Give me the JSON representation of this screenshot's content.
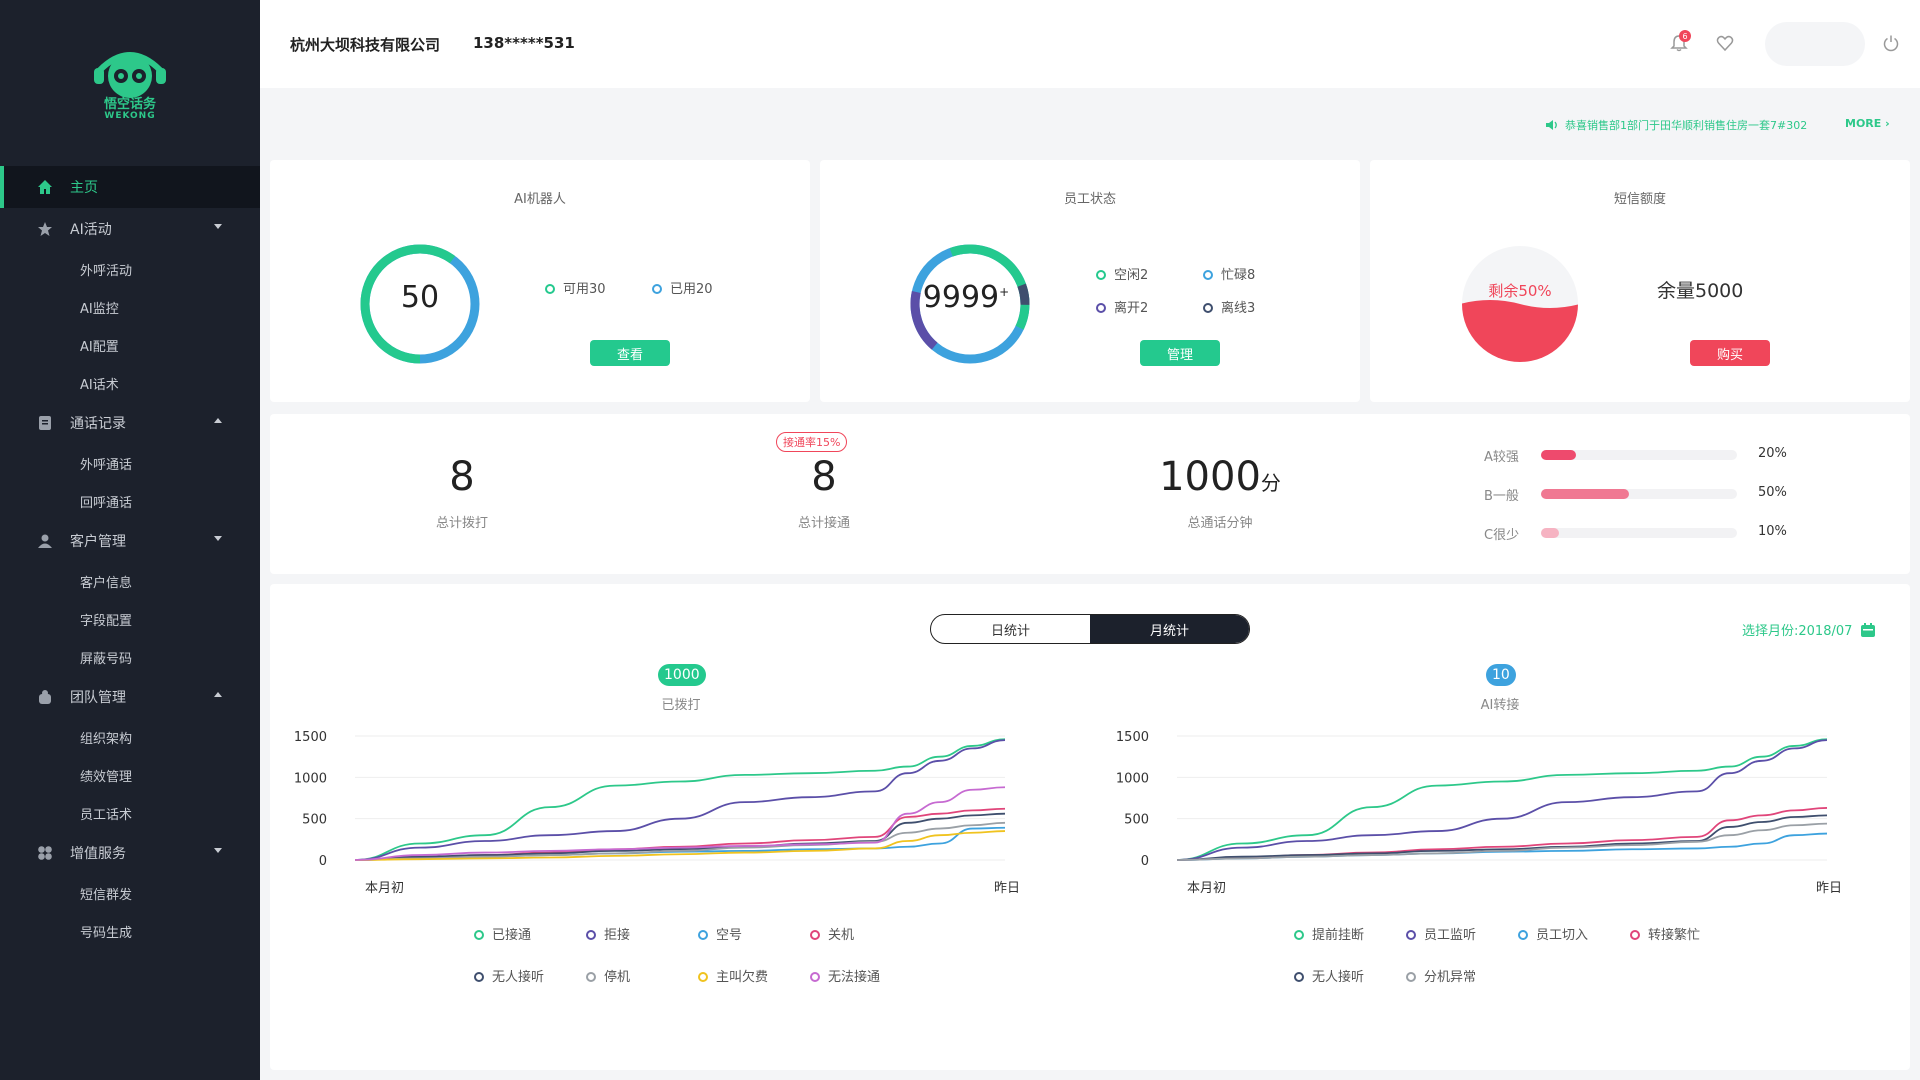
{
  "logo": {
    "text": "悟空话务",
    "sub": "WEKONG"
  },
  "sidebar": {
    "items": [
      {
        "label": "主页",
        "icon": "home-icon",
        "active": true,
        "children": []
      },
      {
        "label": "AI活动",
        "icon": "star-icon",
        "expanded": false,
        "children": [
          "外呼活动",
          "AI监控",
          "AI配置",
          "AI话术"
        ]
      },
      {
        "label": "通话记录",
        "icon": "document-icon",
        "expanded": true,
        "children": [
          "外呼通话",
          "回呼通话"
        ]
      },
      {
        "label": "客户管理",
        "icon": "user-icon",
        "expanded": false,
        "children": [
          "客户信息",
          "字段配置",
          "屏蔽号码"
        ]
      },
      {
        "label": "团队管理",
        "icon": "team-icon",
        "expanded": true,
        "children": [
          "组织架构",
          "绩效管理",
          "员工话术"
        ]
      },
      {
        "label": "增值服务",
        "icon": "grid-icon",
        "expanded": false,
        "children": [
          "短信群发",
          "号码生成"
        ]
      }
    ]
  },
  "header": {
    "company": "杭州大坝科技有限公司",
    "phone": "138*****531",
    "notification_count": "6"
  },
  "notice": {
    "text": "恭喜销售部1部门于田华顺利销售住房一套7#302",
    "more": "MORE"
  },
  "robot_card": {
    "title": "AI机器人",
    "value": "50",
    "available": "可用30",
    "used": "已用20",
    "button": "查看",
    "available_ratio": 0.6
  },
  "staff_card": {
    "title": "员工状态",
    "value": "9999",
    "sup": "+",
    "idle": "空闲2",
    "busy": "忙碌8",
    "away": "离开2",
    "offline": "离线3",
    "button": "管理"
  },
  "sms_card": {
    "title": "短信额度",
    "remain_label": "剩余50%",
    "remain_ratio": 0.5,
    "quota": "余量5000",
    "button": "购买"
  },
  "stats": {
    "total_dial": {
      "value": "8",
      "label": "总计拨打"
    },
    "total_connect": {
      "value": "8",
      "label": "总计接通",
      "rate": "接通率15%"
    },
    "total_minutes": {
      "value": "1000",
      "unit": "分",
      "label": "总通话分钟"
    },
    "intent": [
      {
        "label": "A较强",
        "pct": "20%",
        "ratio": 0.2,
        "color": "#ee4a6d"
      },
      {
        "label": "B一般",
        "pct": "50%",
        "ratio": 0.5,
        "color": "#f07892"
      },
      {
        "label": "C很少",
        "pct": "10%",
        "ratio": 0.1,
        "color": "#f6b3c2"
      }
    ]
  },
  "period_toggle": {
    "day": "日统计",
    "month": "月统计",
    "active": "month"
  },
  "month_picker": {
    "label": "选择月份:2018/07"
  },
  "chart_data": [
    {
      "type": "line",
      "pill_value": "1000",
      "title": "已拨打",
      "x_labels": [
        "本月初",
        "昨日"
      ],
      "ylim": [
        0,
        1500
      ],
      "y_ticks": [
        0,
        500,
        1000,
        1500
      ],
      "x": [
        0,
        0.1,
        0.2,
        0.3,
        0.4,
        0.5,
        0.6,
        0.7,
        0.8,
        0.85,
        0.9,
        0.95,
        1.0
      ],
      "series": [
        {
          "name": "已接通",
          "color": "#2dc88a",
          "values": [
            0,
            200,
            300,
            640,
            900,
            950,
            1030,
            1050,
            1080,
            1130,
            1250,
            1380,
            1460
          ]
        },
        {
          "name": "拒接",
          "color": "#5b4fa8",
          "values": [
            0,
            150,
            230,
            300,
            350,
            500,
            700,
            760,
            830,
            1050,
            1200,
            1350,
            1450
          ]
        },
        {
          "name": "空号",
          "color": "#3da2de",
          "values": [
            0,
            20,
            40,
            60,
            80,
            100,
            110,
            130,
            140,
            160,
            200,
            380,
            390
          ]
        },
        {
          "name": "关机",
          "color": "#e0457a",
          "values": [
            0,
            30,
            60,
            90,
            130,
            160,
            200,
            240,
            280,
            520,
            560,
            600,
            620
          ]
        },
        {
          "name": "无人接听",
          "color": "#3f4f6e",
          "values": [
            0,
            40,
            60,
            80,
            110,
            130,
            160,
            200,
            230,
            450,
            500,
            540,
            560
          ]
        },
        {
          "name": "停机",
          "color": "#9aa0a6",
          "values": [
            0,
            20,
            40,
            60,
            80,
            110,
            150,
            180,
            220,
            330,
            380,
            420,
            450
          ]
        },
        {
          "name": "主叫欠费",
          "color": "#f0c31f",
          "values": [
            0,
            10,
            20,
            30,
            50,
            70,
            90,
            110,
            140,
            230,
            300,
            330,
            350
          ]
        },
        {
          "name": "无法接通",
          "color": "#c66ad1",
          "values": [
            0,
            60,
            90,
            110,
            130,
            150,
            170,
            190,
            210,
            560,
            700,
            850,
            880
          ]
        }
      ]
    },
    {
      "type": "line",
      "pill_value": "10",
      "title": "AI转接",
      "x_labels": [
        "本月初",
        "昨日"
      ],
      "ylim": [
        0,
        1500
      ],
      "y_ticks": [
        0,
        500,
        1000,
        1500
      ],
      "x": [
        0,
        0.1,
        0.2,
        0.3,
        0.4,
        0.5,
        0.6,
        0.7,
        0.8,
        0.85,
        0.9,
        0.95,
        1.0
      ],
      "series": [
        {
          "name": "提前挂断",
          "color": "#2dc88a",
          "values": [
            0,
            200,
            300,
            640,
            900,
            950,
            1030,
            1050,
            1080,
            1130,
            1250,
            1380,
            1460
          ]
        },
        {
          "name": "员工监听",
          "color": "#5b4fa8",
          "values": [
            0,
            150,
            230,
            300,
            350,
            500,
            700,
            760,
            830,
            1050,
            1200,
            1350,
            1450
          ]
        },
        {
          "name": "员工切入",
          "color": "#3da2de",
          "values": [
            0,
            20,
            40,
            60,
            80,
            100,
            110,
            130,
            140,
            160,
            200,
            300,
            320
          ]
        },
        {
          "name": "转接繁忙",
          "color": "#e0457a",
          "values": [
            0,
            30,
            60,
            90,
            130,
            160,
            200,
            240,
            280,
            480,
            540,
            600,
            630
          ]
        },
        {
          "name": "无人接听",
          "color": "#3f4f6e",
          "values": [
            0,
            40,
            60,
            80,
            110,
            130,
            160,
            200,
            230,
            400,
            460,
            520,
            540
          ]
        },
        {
          "name": "分机异常",
          "color": "#9aa0a6",
          "values": [
            0,
            20,
            40,
            60,
            80,
            110,
            150,
            180,
            220,
            300,
            360,
            420,
            440
          ]
        }
      ]
    }
  ]
}
